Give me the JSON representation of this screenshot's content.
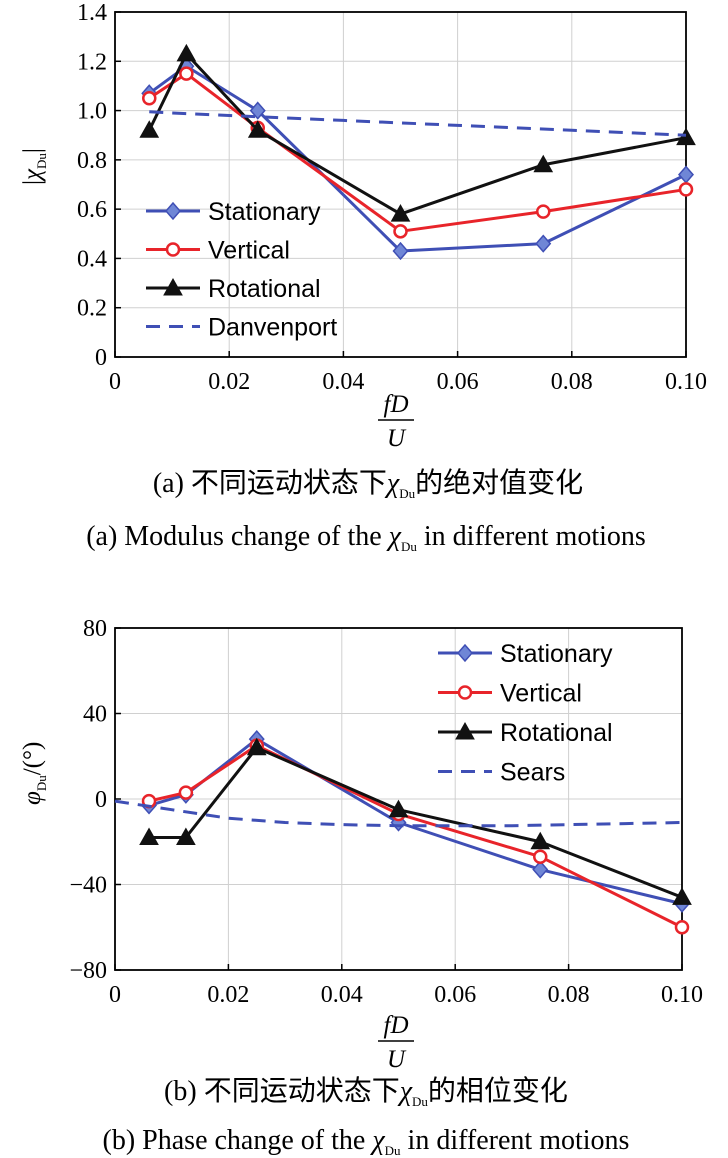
{
  "chart_data": [
    {
      "type": "line",
      "ylabel": "|χDu|",
      "xlabel": "fD/U",
      "xlim": [
        0,
        0.1
      ],
      "ylim": [
        0,
        1.4
      ],
      "x_ticks": [
        "0",
        "0.02",
        "0.04",
        "0.06",
        "0.08",
        "0.10"
      ],
      "y_ticks": [
        "0",
        "0.2",
        "0.4",
        "0.6",
        "0.8",
        "1.0",
        "1.2",
        "1.4"
      ],
      "grid": true,
      "legend_position": "bottom-left",
      "series": [
        {
          "name": "Stationary",
          "color": "#3f4fb5",
          "marker": "diamond",
          "x": [
            0.006,
            0.0125,
            0.025,
            0.05,
            0.075,
            0.1
          ],
          "y": [
            1.07,
            1.18,
            1.0,
            0.43,
            0.46,
            0.74
          ]
        },
        {
          "name": "Vertical",
          "color": "#e8242a",
          "marker": "circle",
          "x": [
            0.006,
            0.0125,
            0.025,
            0.05,
            0.075,
            0.1
          ],
          "y": [
            1.05,
            1.15,
            0.93,
            0.51,
            0.59,
            0.68
          ]
        },
        {
          "name": "Rotational",
          "color": "#111111",
          "marker": "triangle",
          "x": [
            0.006,
            0.0125,
            0.025,
            0.05,
            0.075,
            0.1
          ],
          "y": [
            0.92,
            1.23,
            0.92,
            0.58,
            0.78,
            0.89
          ]
        },
        {
          "name": "Danvenport",
          "color": "#3f4fb5",
          "dashed": true,
          "x": [
            0.006,
            0.01,
            0.02,
            0.03,
            0.04,
            0.05,
            0.06,
            0.07,
            0.08,
            0.09,
            0.1
          ],
          "y": [
            0.995,
            0.99,
            0.98,
            0.97,
            0.96,
            0.95,
            0.94,
            0.93,
            0.92,
            0.91,
            0.9
          ]
        }
      ],
      "caption_cn": "(a) 不同运动状态下χDu的绝对值变化",
      "caption_en": "(a) Modulus change of the χDu in different motions"
    },
    {
      "type": "line",
      "ylabel": "φDu/(°)",
      "xlabel": "fD/U",
      "xlim": [
        0,
        0.1
      ],
      "ylim": [
        -80,
        80
      ],
      "x_ticks": [
        "0",
        "0.02",
        "0.04",
        "0.06",
        "0.08",
        "0.10"
      ],
      "y_ticks": [
        "−80",
        "−40",
        "0",
        "40",
        "80"
      ],
      "grid": true,
      "legend_position": "top-right",
      "series": [
        {
          "name": "Stationary",
          "color": "#3f4fb5",
          "marker": "diamond",
          "x": [
            0.006,
            0.0125,
            0.025,
            0.05,
            0.075,
            0.1
          ],
          "y": [
            -3,
            2,
            28,
            -11,
            -33,
            -49
          ]
        },
        {
          "name": "Vertical",
          "color": "#e8242a",
          "marker": "circle",
          "x": [
            0.006,
            0.0125,
            0.025,
            0.05,
            0.075,
            0.1
          ],
          "y": [
            -1,
            3,
            25,
            -7,
            -27,
            -60
          ]
        },
        {
          "name": "Rotational",
          "color": "#111111",
          "marker": "triangle",
          "x": [
            0.006,
            0.0125,
            0.025,
            0.05,
            0.075,
            0.1
          ],
          "y": [
            -18,
            -18,
            24,
            -5,
            -20,
            -46
          ]
        },
        {
          "name": "Sears",
          "color": "#3f4fb5",
          "dashed": true,
          "x": [
            0,
            0.01,
            0.02,
            0.03,
            0.04,
            0.05,
            0.06,
            0.07,
            0.08,
            0.09,
            0.1
          ],
          "y": [
            -1,
            -5,
            -9,
            -11,
            -12,
            -12.5,
            -12.5,
            -12.5,
            -12,
            -11.5,
            -11
          ]
        }
      ],
      "caption_cn": "(b) 不同运动状态下χDu的相位变化",
      "caption_en": "(b) Phase change of the χDu in different motions"
    }
  ]
}
